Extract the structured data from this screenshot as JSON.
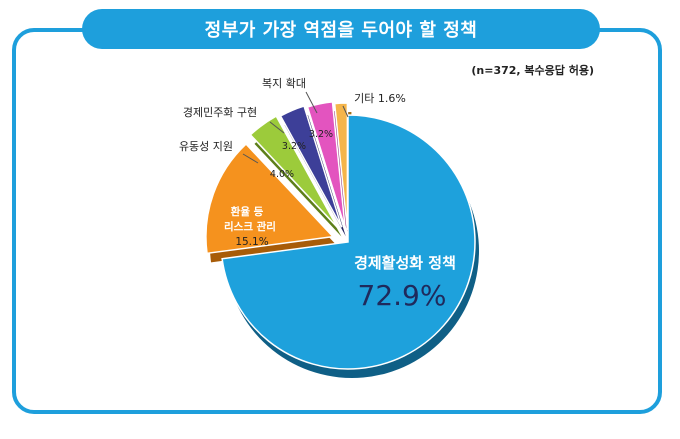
{
  "title": "정부가 가장 역점을 두어야 할 정책",
  "note": "(n=372, 복수응답 허용)",
  "colors": {
    "frame": "#1e9fdc",
    "background": "#ffffff"
  },
  "chart_data": {
    "type": "pie",
    "style": "exploded 3d",
    "slices": [
      {
        "label": "경제활성화 정책",
        "value": 72.9,
        "value_text": "72.9%",
        "color": "#1ea1dc",
        "shadow": "#0f5f86",
        "exploded": false
      },
      {
        "label_lines": [
          "환율 등",
          "리스크 관리"
        ],
        "value": 15.1,
        "value_text": "15.1%",
        "color": "#f5921e",
        "shadow": "#a85c08",
        "exploded": true
      },
      {
        "label": "유동성 지원",
        "value": 4.0,
        "value_text": "4.0%",
        "color": "#9ccb3b",
        "shadow": "#5d7f1a",
        "exploded": true
      },
      {
        "label": "경제민주화 구현",
        "value": 3.2,
        "value_text": "3.2%",
        "color": "#3d3f98",
        "shadow": "#22235e",
        "exploded": true
      },
      {
        "label": "복지 확대",
        "value": 3.2,
        "value_text": "3.2%",
        "color": "#e354bf",
        "shadow": "#8f2c77",
        "exploded": true
      },
      {
        "label": "기타",
        "value": 1.6,
        "value_text": "1.6%",
        "color": "#f5b54a",
        "shadow": "#a36f17",
        "exploded": true
      }
    ]
  }
}
